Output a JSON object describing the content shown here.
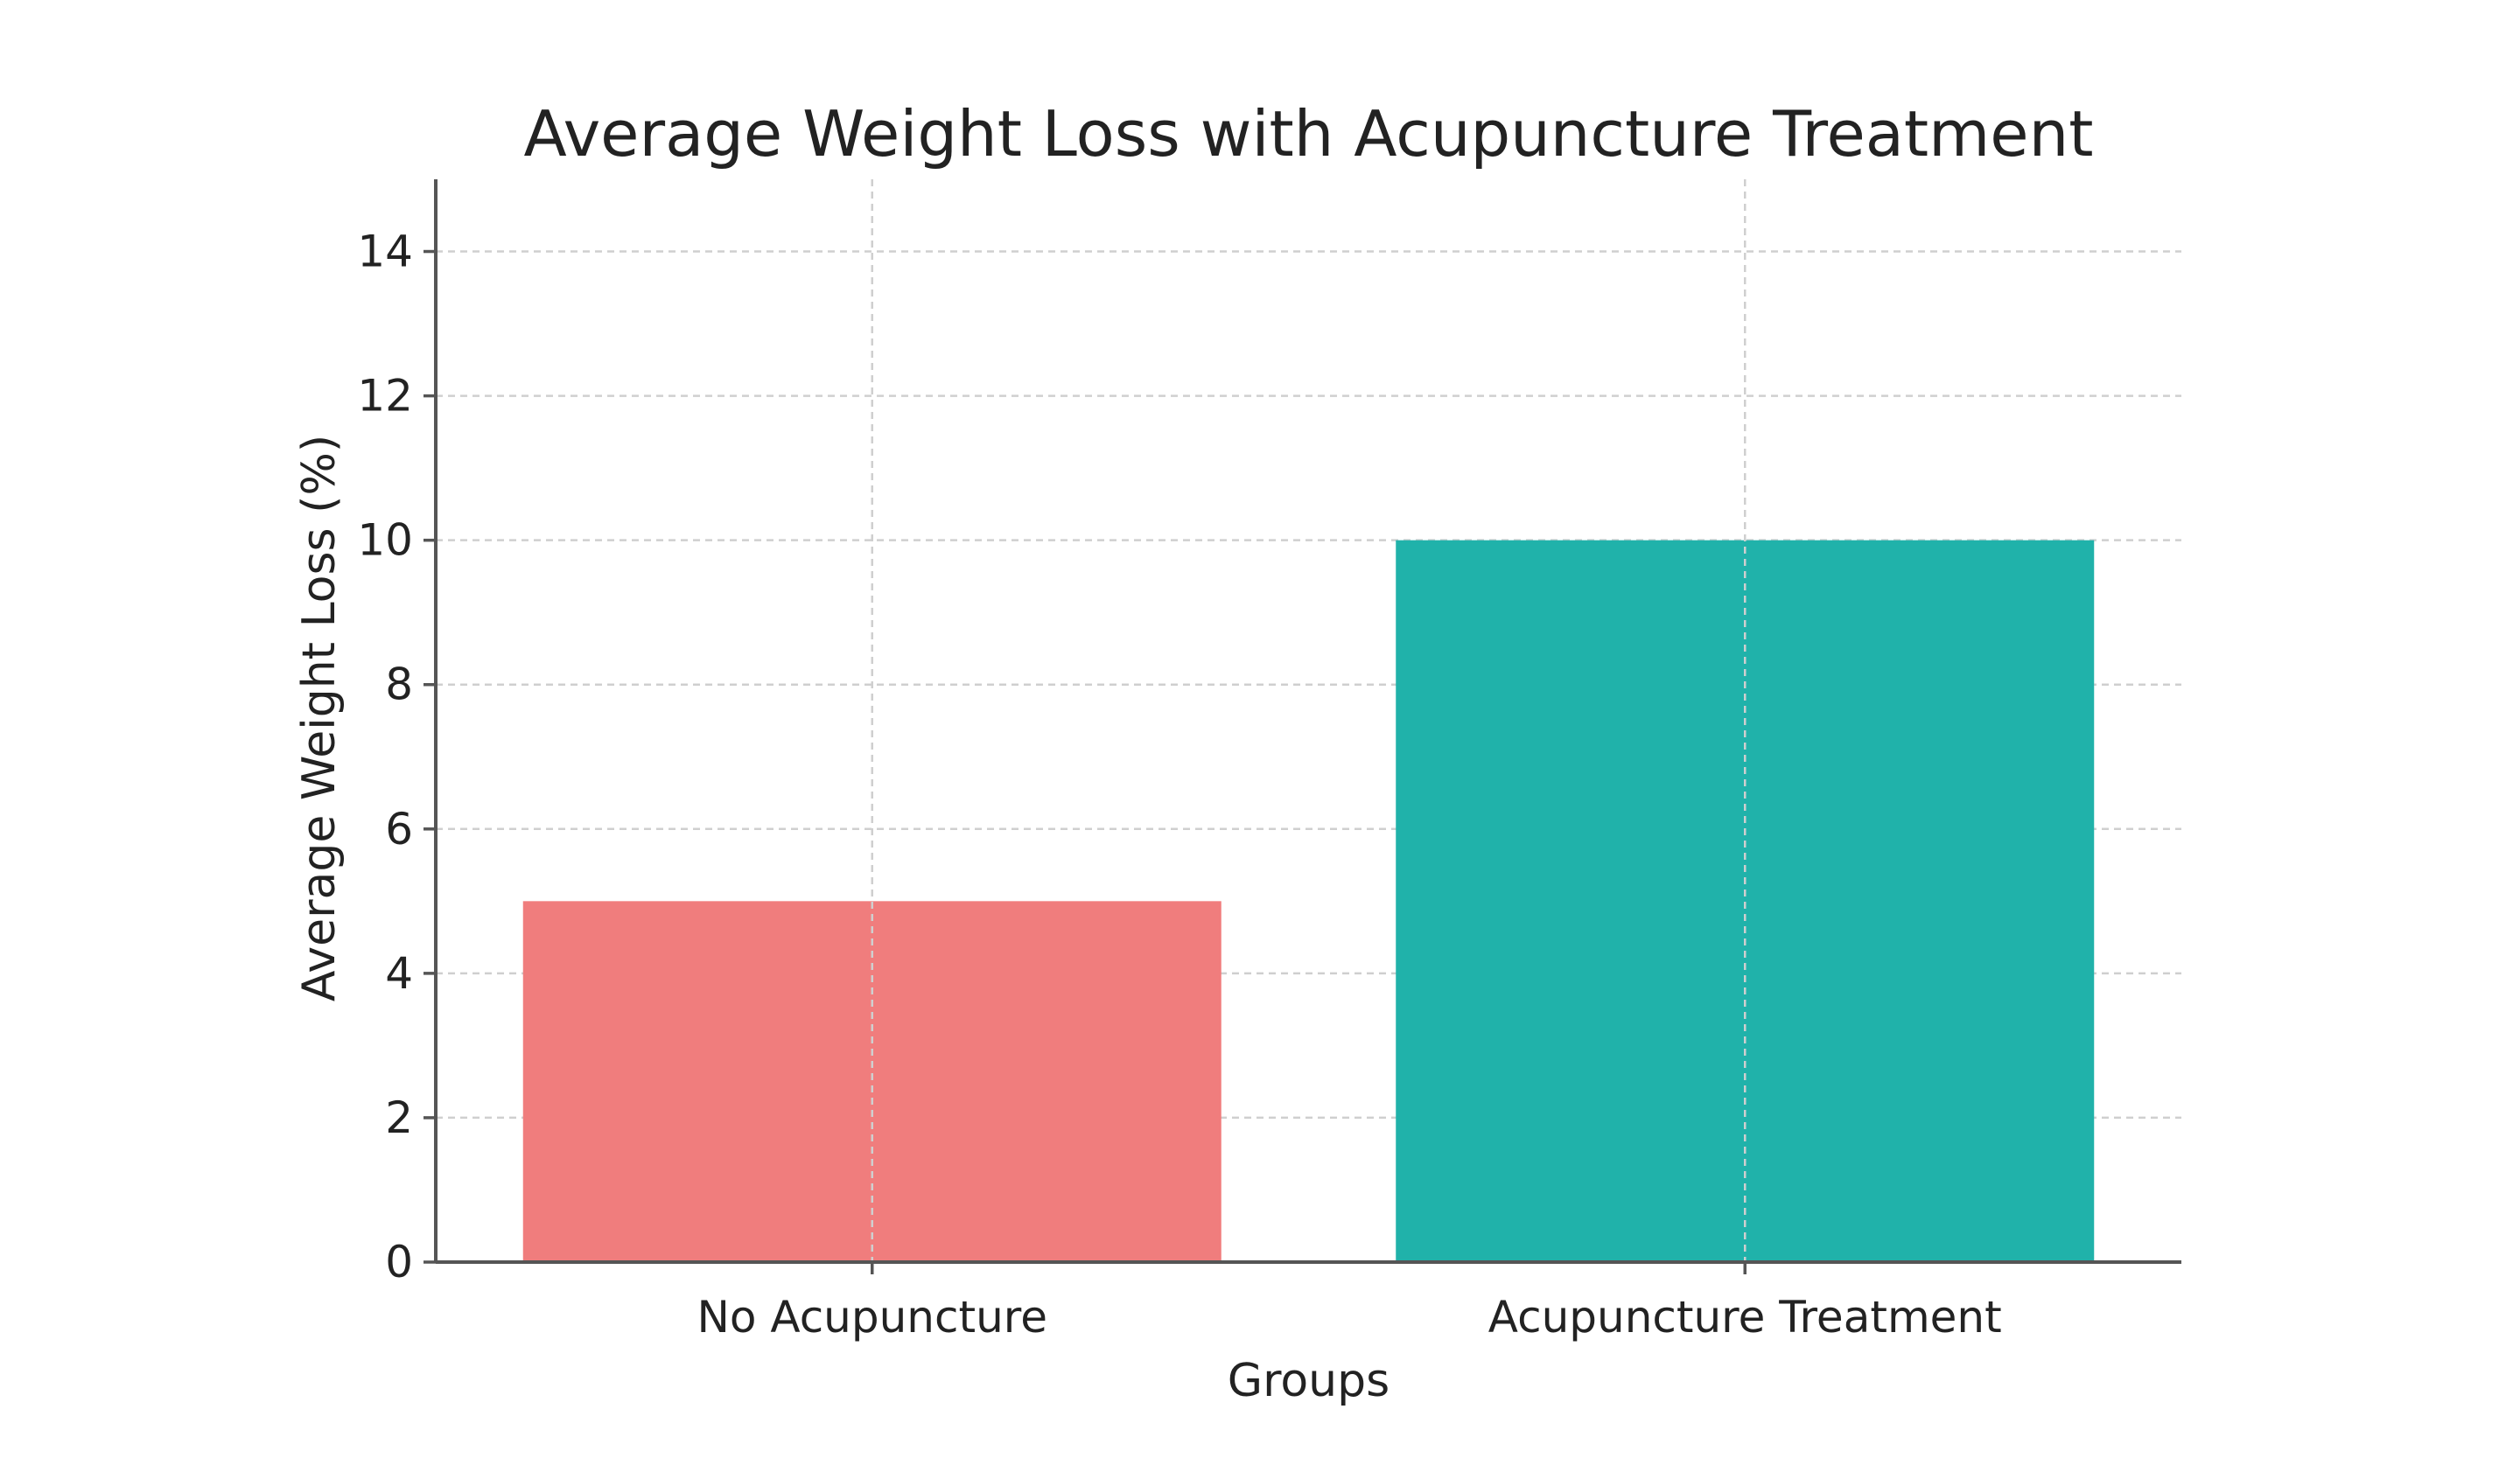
{
  "chart_data": {
    "type": "bar",
    "title": "Average Weight Loss with Acupuncture Treatment",
    "xlabel": "Groups",
    "ylabel": "Average Weight Loss (%)",
    "categories": [
      "No Acupuncture",
      "Acupuncture Treatment"
    ],
    "values": [
      5,
      10
    ],
    "colors": [
      "#f07d7d",
      "#20b2aa"
    ],
    "ylim": [
      0,
      15
    ],
    "yticks": [
      0,
      2,
      4,
      6,
      8,
      10,
      12,
      14
    ],
    "ytick_labels": [
      "0",
      "2",
      "4",
      "6",
      "8",
      "10",
      "12",
      "14"
    ],
    "grid": true,
    "axis_color": "#555555",
    "grid_color": "#cfcfcf"
  }
}
